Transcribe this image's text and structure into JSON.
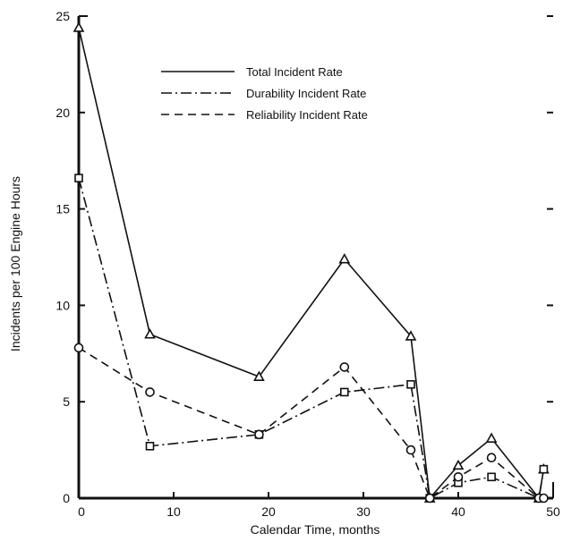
{
  "chart_data": {
    "type": "line",
    "title": "",
    "xlabel": "Calendar Time, months",
    "ylabel": "Incidents per 100 Engine Hours",
    "xlim": [
      0,
      50
    ],
    "ylim": [
      0,
      25
    ],
    "xticks": [
      0,
      10,
      20,
      30,
      40,
      50
    ],
    "xtick_labels": [
      "0",
      "10",
      "20",
      "30",
      "40",
      "50"
    ],
    "yticks": [
      0,
      5,
      10,
      15,
      20,
      25
    ],
    "ytick_labels": [
      "0",
      "5",
      "10",
      "15",
      "20",
      "25"
    ],
    "grid": false,
    "legend_position": "top-center",
    "series": [
      {
        "name": "Total Incident Rate",
        "line": "solid",
        "marker": "triangle",
        "x": [
          0,
          7.5,
          19,
          28,
          35,
          37,
          40,
          43.5,
          48.5,
          49
        ],
        "y": [
          24.4,
          8.5,
          6.3,
          12.4,
          8.4,
          0,
          1.7,
          3.1,
          0,
          1.5
        ]
      },
      {
        "name": "Durability Incident Rate",
        "line": "dash-dot",
        "marker": "square",
        "x": [
          0,
          7.5,
          19,
          28,
          35,
          37,
          40,
          43.5,
          48.5,
          49
        ],
        "y": [
          16.6,
          2.7,
          3.3,
          5.5,
          5.9,
          0,
          0.8,
          1.1,
          0,
          1.5
        ]
      },
      {
        "name": "Reliability Incident Rate",
        "line": "dashed",
        "marker": "circle",
        "x": [
          0,
          7.5,
          19,
          28,
          35,
          37,
          40,
          43.5,
          48.5,
          49
        ],
        "y": [
          7.8,
          5.5,
          3.3,
          6.8,
          2.5,
          0,
          1.1,
          2.1,
          0,
          0
        ]
      }
    ]
  }
}
